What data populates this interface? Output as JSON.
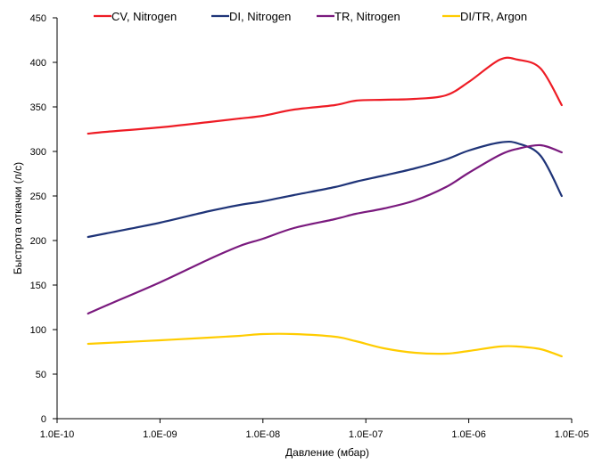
{
  "chart_data": {
    "type": "line",
    "title": "",
    "xlabel": "Давление (мбар)",
    "ylabel": "Быстрота откачки (л/с)",
    "x_scale": "log",
    "xlim": [
      1e-10,
      1e-05
    ],
    "ylim": [
      0,
      450
    ],
    "y_ticks": [
      0,
      50,
      100,
      150,
      200,
      250,
      300,
      350,
      400,
      450
    ],
    "x_tick_labels": [
      "1.0E-10",
      "1.0E-09",
      "1.0E-08",
      "1.0E-07",
      "1.0E-06",
      "1.0E-05"
    ],
    "grid": false,
    "legend_position": "top",
    "series": [
      {
        "name": "CV, Nitrogen",
        "color": "#ee1c25",
        "x": [
          2e-10,
          3e-10,
          1e-09,
          3e-09,
          6e-09,
          1e-08,
          2e-08,
          5e-08,
          8e-08,
          1.5e-07,
          3e-07,
          6e-07,
          1e-06,
          2e-06,
          3e-06,
          5e-06,
          8e-06
        ],
        "y": [
          320,
          322,
          327,
          333,
          337,
          340,
          347,
          352,
          357,
          358,
          359,
          363,
          378,
          403,
          403,
          393,
          352
        ]
      },
      {
        "name": "DI, Nitrogen",
        "color": "#1f3478",
        "x": [
          2e-10,
          3e-10,
          1e-09,
          3e-09,
          6e-09,
          1e-08,
          2e-08,
          5e-08,
          8e-08,
          1.5e-07,
          3e-07,
          6e-07,
          1e-06,
          2e-06,
          3e-06,
          5e-06,
          8e-06
        ],
        "y": [
          204,
          208,
          220,
          233,
          240,
          244,
          251,
          260,
          266,
          273,
          281,
          291,
          301,
          310,
          309,
          295,
          250
        ]
      },
      {
        "name": "TR, Nitrogen",
        "color": "#7a1a7e",
        "x": [
          2e-10,
          3e-10,
          1e-09,
          3e-09,
          6e-09,
          1e-08,
          2e-08,
          5e-08,
          8e-08,
          1.5e-07,
          3e-07,
          6e-07,
          1e-06,
          2e-06,
          3e-06,
          5e-06,
          8e-06
        ],
        "y": [
          118,
          127,
          153,
          179,
          194,
          202,
          214,
          224,
          230,
          236,
          245,
          260,
          276,
          296,
          303,
          307,
          299
        ]
      },
      {
        "name": "DI/TR, Argon",
        "color": "#ffcc00",
        "x": [
          2e-10,
          3e-10,
          1e-09,
          3e-09,
          6e-09,
          1e-08,
          2e-08,
          5e-08,
          8e-08,
          1.5e-07,
          3e-07,
          6e-07,
          1e-06,
          2e-06,
          3e-06,
          5e-06,
          8e-06
        ],
        "y": [
          84,
          85,
          88,
          91,
          93,
          95,
          95,
          92,
          87,
          79,
          74,
          73,
          76,
          81,
          81,
          78,
          70
        ]
      }
    ]
  }
}
